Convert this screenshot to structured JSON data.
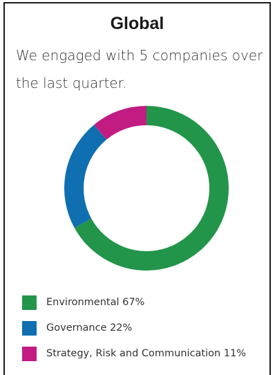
{
  "card": {
    "title": "Global",
    "subtitle": "We engaged with 5 companies over the last quarter."
  },
  "chart_data": {
    "type": "pie",
    "style": "donut",
    "start_angle_deg": 0,
    "direction": "clockwise",
    "slices": [
      {
        "name": "Environmental",
        "value": 67,
        "label": "Environmental 67%",
        "color": "#22954a"
      },
      {
        "name": "Governance",
        "value": 22,
        "label": "Governance 22%",
        "color": "#0f6fb0"
      },
      {
        "name": "Strategy, Risk and Communication",
        "value": 11,
        "label": "Strategy, Risk and Communication 11%",
        "color": "#c21b82"
      }
    ],
    "legend_position": "bottom"
  }
}
